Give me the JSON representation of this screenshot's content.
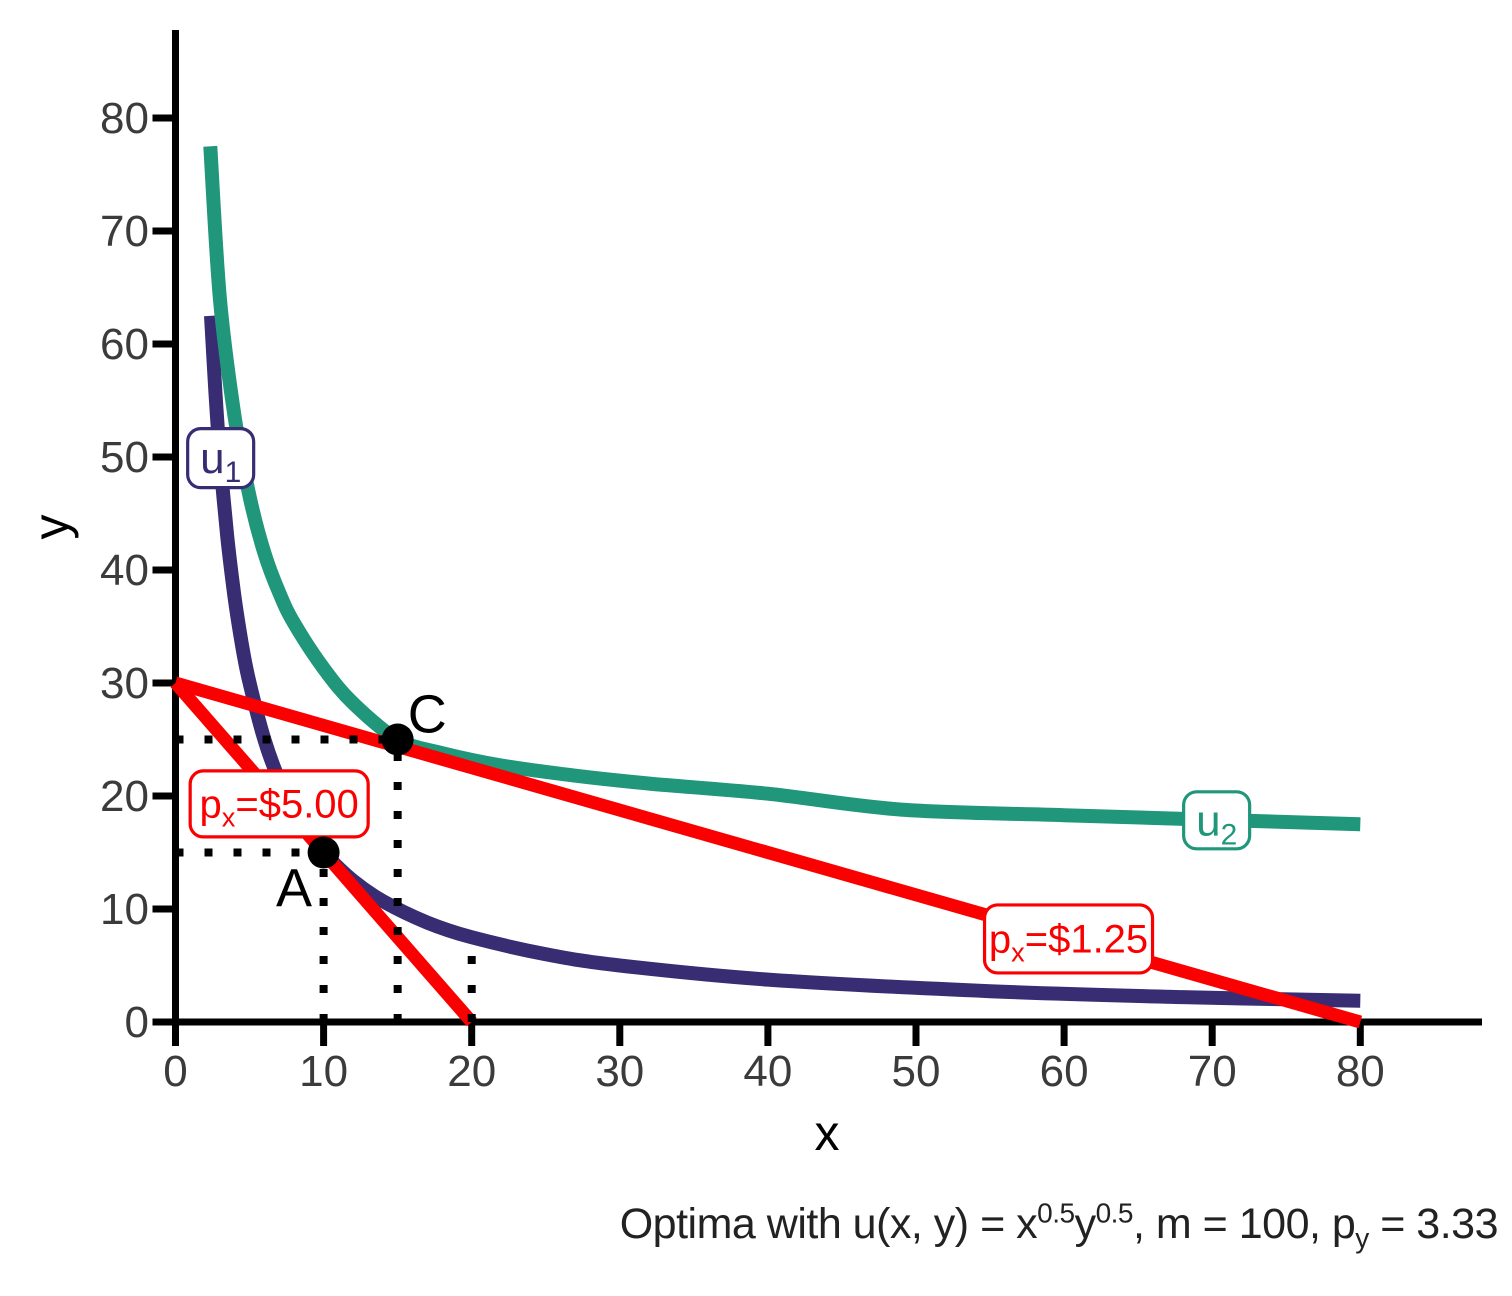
{
  "caption": {
    "part1": "Optima with u(x, y) = x",
    "sup1": "0.5",
    "part2": "y",
    "sup2": "0.5",
    "part3": ", m = 100, p",
    "sub1": "y",
    "part4": " = 3.33"
  },
  "chart_data": {
    "type": "line",
    "xlabel": "x",
    "ylabel": "y",
    "xlim": [
      0,
      88
    ],
    "ylim": [
      0,
      88
    ],
    "xticks": [
      0,
      10,
      20,
      30,
      40,
      50,
      60,
      70,
      80
    ],
    "yticks": [
      0,
      10,
      20,
      30,
      40,
      50,
      60,
      70,
      80
    ],
    "grid": false,
    "legend_position": "none",
    "colors": {
      "axis": "#000000",
      "tick_label": "#3b3b3b",
      "guide": "#000000",
      "point": "#000000",
      "u1": "#382c73",
      "u2": "#20967a",
      "budget": "#fa0000"
    },
    "series": [
      {
        "id": "u1",
        "kind": "indifference-curve",
        "color": "#382c73",
        "label_pre": "u",
        "label_sub": "1",
        "points": [
          [
            2.4,
            62.5
          ],
          [
            2.7,
            55.6
          ],
          [
            3,
            50
          ],
          [
            3.5,
            42.9
          ],
          [
            4,
            37.5
          ],
          [
            4.5,
            33.3
          ],
          [
            5,
            30
          ],
          [
            6,
            25
          ],
          [
            7,
            21.4
          ],
          [
            8,
            18.75
          ],
          [
            9,
            16.7
          ],
          [
            10,
            15
          ],
          [
            12,
            12.5
          ],
          [
            14,
            10.7
          ],
          [
            17,
            8.8
          ],
          [
            20,
            7.5
          ],
          [
            25,
            6
          ],
          [
            30,
            5
          ],
          [
            40,
            3.75
          ],
          [
            55,
            2.73
          ],
          [
            68,
            2.2
          ],
          [
            80,
            1.88
          ]
        ]
      },
      {
        "id": "u2",
        "kind": "indifference-curve",
        "color": "#20967a",
        "label_pre": "u",
        "label_sub": "2",
        "points": [
          [
            2.35,
            77.5
          ],
          [
            3,
            64
          ],
          [
            4,
            53.5
          ],
          [
            5,
            46.5
          ],
          [
            6,
            41.5
          ],
          [
            7,
            38
          ],
          [
            8,
            35.3
          ],
          [
            10,
            31.3
          ],
          [
            12,
            28.2
          ],
          [
            15,
            25
          ],
          [
            18,
            23.8
          ],
          [
            22,
            22.7
          ],
          [
            27,
            21.8
          ],
          [
            32,
            21.1
          ],
          [
            40,
            20.2
          ],
          [
            49,
            18.8
          ],
          [
            60,
            18.3
          ],
          [
            70,
            17.9
          ],
          [
            80,
            17.5
          ]
        ]
      },
      {
        "id": "budget-px-5",
        "kind": "budget-line",
        "color": "#fa0000",
        "label_pre": "p",
        "label_sub": "x",
        "label_post": "=$5.00",
        "points": [
          [
            0,
            30
          ],
          [
            20,
            0
          ]
        ]
      },
      {
        "id": "budget-px-125",
        "kind": "budget-line",
        "color": "#fa0000",
        "label_pre": "p",
        "label_sub": "x",
        "label_post": "=$1.25",
        "points": [
          [
            0,
            30
          ],
          [
            80,
            0
          ]
        ]
      }
    ],
    "optima_points": [
      {
        "label": "A",
        "x": 10,
        "y": 15
      },
      {
        "label": "C",
        "x": 15,
        "y": 25
      }
    ],
    "guides": [
      {
        "id": "h-y25",
        "from": [
          0,
          25
        ],
        "to": [
          15,
          25
        ]
      },
      {
        "id": "v-x15",
        "from": [
          15,
          0
        ],
        "to": [
          15,
          25
        ]
      },
      {
        "id": "h-y15",
        "from": [
          0,
          15
        ],
        "to": [
          10,
          15
        ]
      },
      {
        "id": "v-x10",
        "from": [
          10,
          0
        ],
        "to": [
          10,
          15
        ]
      },
      {
        "id": "v-x20",
        "from": [
          20,
          0
        ],
        "to": [
          20,
          7.5
        ]
      }
    ],
    "annotations": {
      "u1_box": {
        "x": 3.05,
        "y": 49.9
      },
      "u2_box": {
        "x": 70.3,
        "y": 17.85
      },
      "budget5_box": {
        "x": 7.0,
        "y": 19.3
      },
      "budget125_box": {
        "x": 60.3,
        "y": 7.35
      },
      "A_text": {
        "x": 8.0,
        "y": 11.9
      },
      "C_text": {
        "x": 17.0,
        "y": 27.3
      }
    }
  }
}
